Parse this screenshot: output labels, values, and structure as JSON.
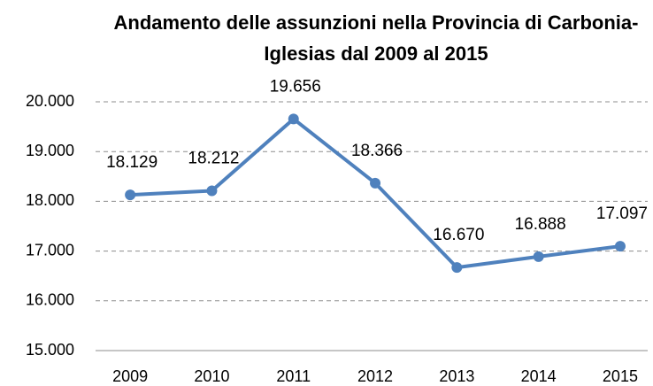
{
  "chart_data": {
    "type": "line",
    "title": "Andamento delle assunzioni nella Provincia di Carbonia-Iglesias dal 2009 al 2015",
    "categories": [
      "2009",
      "2010",
      "2011",
      "2012",
      "2013",
      "2014",
      "2015"
    ],
    "values": [
      18129,
      18212,
      19656,
      18366,
      16670,
      16888,
      17097
    ],
    "value_labels": [
      "18.129",
      "18.212",
      "19.656",
      "18.366",
      "16.670",
      "16.888",
      "17.097"
    ],
    "color": "#4f81bd",
    "ylim": [
      15000,
      20000
    ],
    "yticks": [
      {
        "value": 15000,
        "label": "15.000"
      },
      {
        "value": 16000,
        "label": "16.000"
      },
      {
        "value": 17000,
        "label": "17.000"
      },
      {
        "value": 18000,
        "label": "18.000"
      },
      {
        "value": 19000,
        "label": "19.000"
      },
      {
        "value": 20000,
        "label": "20.000"
      }
    ],
    "grid": true
  }
}
